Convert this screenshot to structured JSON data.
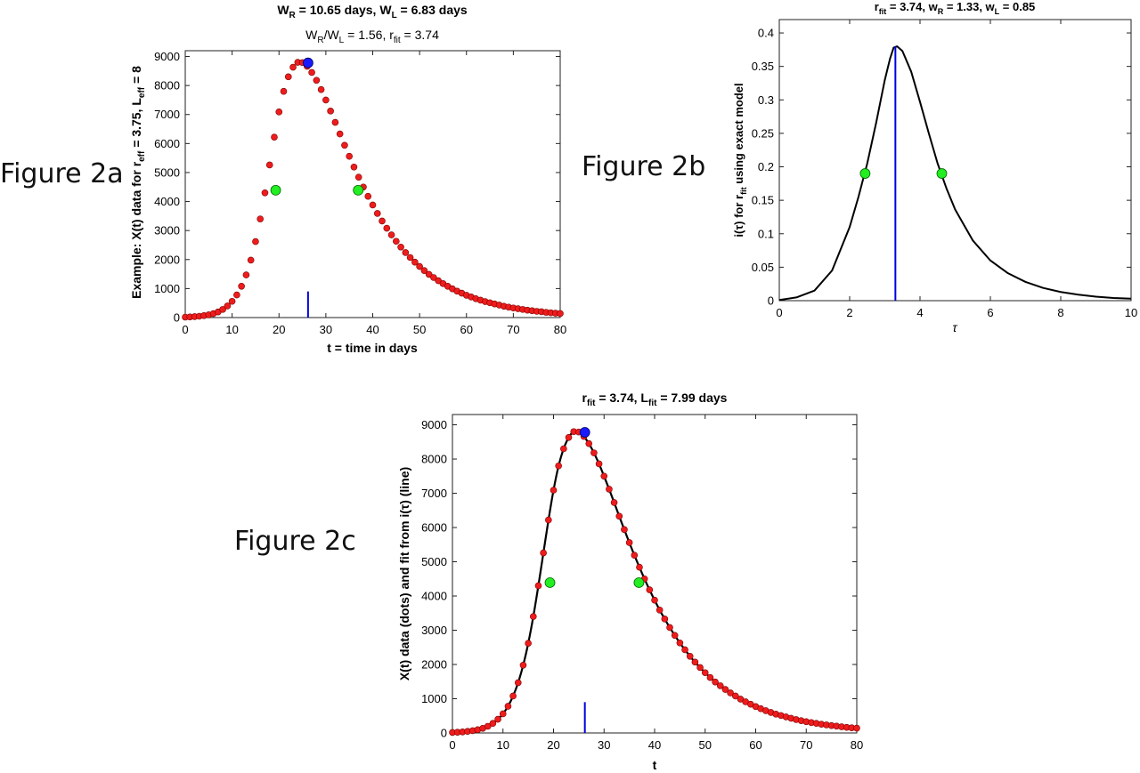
{
  "figure_labels": {
    "a": "Figure 2a",
    "b": "Figure 2b",
    "c": "Figure 2c"
  },
  "colors": {
    "data_points": "#ee1c1c",
    "peak_point": "#1a1aff",
    "half_points": "#22ee22",
    "marker_line": "#0000dd",
    "fit_line": "#000000"
  },
  "chart_data": [
    {
      "id": "2a",
      "type": "scatter",
      "title_line1": {
        "parts": [
          "W",
          "R",
          " = 10.65 days, W",
          "L",
          " = 6.83 days"
        ]
      },
      "title_line2": {
        "parts": [
          "W",
          "R",
          "/W",
          "L",
          " = 1.56, r",
          "fit",
          " = 3.74"
        ]
      },
      "xlabel": "t = time in days",
      "ylabel": {
        "parts": [
          "Example: X(t) data for r",
          "eff",
          " = 3.75, L",
          "eff",
          " = 8"
        ]
      },
      "xlim": [
        0,
        80
      ],
      "ylim": [
        0,
        9200
      ],
      "xticks": [
        0,
        10,
        20,
        30,
        40,
        50,
        60,
        70,
        80
      ],
      "yticks": [
        0,
        1000,
        2000,
        3000,
        4000,
        5000,
        6000,
        7000,
        8000,
        9000
      ],
      "data": {
        "t": [
          0,
          1,
          2,
          3,
          4,
          5,
          6,
          7,
          8,
          9,
          10,
          11,
          12,
          13,
          14,
          15,
          16,
          17,
          18,
          19,
          20,
          21,
          22,
          23,
          24,
          25,
          26,
          27,
          28,
          29,
          30,
          31,
          32,
          33,
          34,
          35,
          36,
          37,
          38,
          39,
          40,
          41,
          42,
          43,
          44,
          45,
          46,
          47,
          48,
          49,
          50,
          51,
          52,
          53,
          54,
          55,
          56,
          57,
          58,
          59,
          60,
          61,
          62,
          63,
          64,
          65,
          66,
          67,
          68,
          69,
          70,
          71,
          72,
          73,
          74,
          75,
          76,
          77,
          78,
          79,
          80
        ],
        "x": [
          15,
          22,
          32,
          46,
          66,
          95,
          136,
          195,
          280,
          400,
          560,
          780,
          1080,
          1470,
          1980,
          2620,
          3400,
          4300,
          5260,
          6220,
          7090,
          7800,
          8300,
          8630,
          8800,
          8790,
          8660,
          8450,
          8180,
          7860,
          7500,
          7120,
          6730,
          6330,
          5940,
          5560,
          5190,
          4840,
          4500,
          4180,
          3880,
          3590,
          3330,
          3080,
          2850,
          2630,
          2430,
          2240,
          2070,
          1910,
          1760,
          1620,
          1490,
          1380,
          1270,
          1170,
          1080,
          990,
          910,
          840,
          770,
          710,
          650,
          600,
          550,
          510,
          470,
          430,
          390,
          360,
          330,
          305,
          280,
          255,
          235,
          215,
          200,
          180,
          165,
          150,
          140
        ]
      },
      "peak": {
        "t": 26.2,
        "x": 8780
      },
      "half_points": [
        {
          "t": 19.3,
          "x": 4390
        },
        {
          "t": 36.9,
          "x": 4390
        }
      ],
      "marker": {
        "t": 26.2,
        "height": 900
      }
    },
    {
      "id": "2b",
      "type": "line",
      "title": {
        "parts": [
          "r",
          "fit",
          " = 3.74, w",
          "R",
          " = 1.33, w",
          "L",
          " = 0.85"
        ]
      },
      "xlabel": "τ",
      "ylabel": {
        "parts": [
          "i(τ) for r",
          "fit",
          " using exact model"
        ]
      },
      "xlim": [
        0,
        10
      ],
      "ylim": [
        0,
        0.42
      ],
      "xticks": [
        0,
        2,
        4,
        6,
        8,
        10
      ],
      "yticks": [
        0,
        0.05,
        0.1,
        0.15,
        0.2,
        0.25,
        0.3,
        0.35,
        0.4
      ],
      "data": {
        "tau": [
          0,
          0.5,
          1,
          1.5,
          2,
          2.25,
          2.5,
          2.75,
          3,
          3.15,
          3.25,
          3.35,
          3.5,
          3.75,
          4,
          4.25,
          4.5,
          4.75,
          5,
          5.5,
          6,
          6.5,
          7,
          7.5,
          8,
          8.5,
          9,
          9.5,
          10
        ],
        "i": [
          0.001,
          0.005,
          0.015,
          0.045,
          0.11,
          0.155,
          0.205,
          0.265,
          0.33,
          0.362,
          0.378,
          0.38,
          0.373,
          0.342,
          0.297,
          0.25,
          0.205,
          0.168,
          0.136,
          0.09,
          0.06,
          0.041,
          0.028,
          0.019,
          0.013,
          0.009,
          0.006,
          0.004,
          0.003
        ]
      },
      "half_points": [
        {
          "tau": 2.44,
          "i": 0.19
        },
        {
          "tau": 4.62,
          "i": 0.19
        }
      ],
      "marker": {
        "tau": 3.3,
        "top": 0.38
      }
    },
    {
      "id": "2c",
      "type": "scatter",
      "title": {
        "parts": [
          "r",
          "fit",
          " = 3.74, L",
          "fit",
          " = 7.99 days"
        ]
      },
      "xlabel": "t",
      "ylabel": {
        "parts": [
          "X(t) data (dots) and fit from i(τ) (line)"
        ]
      },
      "xlim": [
        0,
        80
      ],
      "ylim": [
        0,
        9300
      ],
      "xticks": [
        0,
        10,
        20,
        30,
        40,
        50,
        60,
        70,
        80
      ],
      "yticks": [
        0,
        1000,
        2000,
        3000,
        4000,
        5000,
        6000,
        7000,
        8000,
        9000
      ],
      "peak": {
        "t": 26.2,
        "x": 8780
      },
      "half_points": [
        {
          "t": 19.3,
          "x": 4390
        },
        {
          "t": 36.9,
          "x": 4390
        }
      ],
      "marker": {
        "t": 26.2,
        "height": 900
      }
    }
  ]
}
